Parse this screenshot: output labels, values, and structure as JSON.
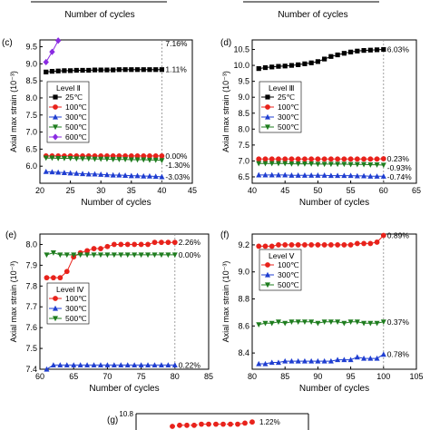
{
  "top_strip": {
    "xlabel_left": "Number of cycles",
    "xlabel_right": "Number of cycles"
  },
  "chart_data": [
    {
      "id": "c",
      "panel_label": "(c)",
      "type": "line",
      "xlabel": "Number of cycles",
      "ylabel": "Axial max strain (10⁻³)",
      "xlim": [
        20,
        45
      ],
      "ylim": [
        5.5,
        9.7
      ],
      "xticks": [
        20,
        25,
        30,
        35,
        40,
        45
      ],
      "yticks": [
        6.0,
        6.5,
        7.0,
        7.5,
        8.0,
        8.5,
        9.0,
        9.5
      ],
      "ytick_labels": [
        "6.0",
        "6.5",
        "7.0",
        "7.5",
        "8.0",
        "8.5",
        "9.0",
        "9.5"
      ],
      "vline_x": 40,
      "legend": {
        "title": "Level Ⅱ",
        "placement": "left"
      },
      "series": [
        {
          "name": "25℃",
          "color": "#000000",
          "marker": "square",
          "x": [
            21,
            22,
            23,
            24,
            25,
            26,
            27,
            28,
            29,
            30,
            31,
            32,
            33,
            34,
            35,
            36,
            37,
            38,
            39,
            40
          ],
          "y": [
            8.76,
            8.78,
            8.79,
            8.8,
            8.8,
            8.81,
            8.81,
            8.81,
            8.82,
            8.82,
            8.82,
            8.82,
            8.83,
            8.83,
            8.83,
            8.83,
            8.83,
            8.83,
            8.83,
            8.83
          ],
          "end_label": "1.11%"
        },
        {
          "name": "100℃",
          "color": "#e8221b",
          "marker": "circle",
          "x": [
            21,
            22,
            23,
            24,
            25,
            26,
            27,
            28,
            29,
            30,
            31,
            32,
            33,
            34,
            35,
            36,
            37,
            38,
            39,
            40
          ],
          "y": [
            6.3,
            6.3,
            6.3,
            6.3,
            6.3,
            6.3,
            6.3,
            6.3,
            6.3,
            6.3,
            6.3,
            6.3,
            6.3,
            6.3,
            6.3,
            6.3,
            6.3,
            6.3,
            6.3,
            6.3
          ],
          "end_label": "0.00%"
        },
        {
          "name": "300℃",
          "color": "#1f3ed1",
          "marker": "triangle-up",
          "x": [
            21,
            22,
            23,
            24,
            25,
            26,
            27,
            28,
            29,
            30,
            31,
            32,
            33,
            34,
            35,
            36,
            37,
            38,
            39,
            40
          ],
          "y": [
            5.84,
            5.83,
            5.82,
            5.81,
            5.8,
            5.79,
            5.78,
            5.77,
            5.77,
            5.76,
            5.75,
            5.74,
            5.74,
            5.73,
            5.72,
            5.72,
            5.71,
            5.71,
            5.7,
            5.69
          ],
          "end_label": "-3.03%"
        },
        {
          "name": "500℃",
          "color": "#1f7d1f",
          "marker": "triangle-down",
          "x": [
            21,
            22,
            23,
            24,
            25,
            26,
            27,
            28,
            29,
            30,
            31,
            32,
            33,
            34,
            35,
            36,
            37,
            38,
            39,
            40
          ],
          "y": [
            6.24,
            6.24,
            6.23,
            6.23,
            6.23,
            6.22,
            6.22,
            6.22,
            6.21,
            6.21,
            6.21,
            6.2,
            6.2,
            6.2,
            6.19,
            6.19,
            6.19,
            6.18,
            6.18,
            6.17
          ],
          "end_label": "-1.30%"
        },
        {
          "name": "600℃",
          "color": "#8a2be2",
          "marker": "diamond",
          "x": [
            21,
            22,
            23
          ],
          "y": [
            9.05,
            9.35,
            9.68
          ],
          "end_label": "7.16%"
        }
      ]
    },
    {
      "id": "d",
      "panel_label": "(d)",
      "type": "line",
      "xlabel": "Number of cycles",
      "ylabel": "Axial max strain (10⁻³)",
      "xlim": [
        40,
        65
      ],
      "ylim": [
        6.3,
        10.8
      ],
      "xticks": [
        40,
        45,
        50,
        55,
        60,
        65
      ],
      "yticks": [
        6.5,
        7.0,
        7.5,
        8.0,
        8.5,
        9.0,
        9.5,
        10.0,
        10.5
      ],
      "ytick_labels": [
        "6.5",
        "7.0",
        "7.5",
        "8.0",
        "8.5",
        "9.0",
        "9.5",
        "10.0",
        "10.5"
      ],
      "vline_x": 60,
      "legend": {
        "title": "Level Ⅲ",
        "placement": "left"
      },
      "series": [
        {
          "name": "25℃",
          "color": "#000000",
          "marker": "square",
          "x": [
            41,
            42,
            43,
            44,
            45,
            46,
            47,
            48,
            49,
            50,
            51,
            52,
            53,
            54,
            55,
            56,
            57,
            58,
            59,
            60
          ],
          "y": [
            9.9,
            9.93,
            9.95,
            9.97,
            9.98,
            10.0,
            10.02,
            10.05,
            10.08,
            10.12,
            10.2,
            10.28,
            10.33,
            10.38,
            10.42,
            10.45,
            10.47,
            10.48,
            10.49,
            10.5
          ],
          "end_label": "6.03%"
        },
        {
          "name": "100℃",
          "color": "#e8221b",
          "marker": "circle",
          "x": [
            41,
            42,
            43,
            44,
            45,
            46,
            47,
            48,
            49,
            50,
            51,
            52,
            53,
            54,
            55,
            56,
            57,
            58,
            59,
            60
          ],
          "y": [
            7.06,
            7.06,
            7.06,
            7.06,
            7.06,
            7.06,
            7.06,
            7.06,
            7.06,
            7.06,
            7.06,
            7.06,
            7.06,
            7.06,
            7.06,
            7.06,
            7.06,
            7.06,
            7.06,
            7.07
          ],
          "end_label": "0.23%"
        },
        {
          "name": "300℃",
          "color": "#1f3ed1",
          "marker": "triangle-up",
          "x": [
            41,
            42,
            43,
            44,
            45,
            46,
            47,
            48,
            49,
            50,
            51,
            52,
            53,
            54,
            55,
            56,
            57,
            58,
            59,
            60
          ],
          "y": [
            6.56,
            6.56,
            6.56,
            6.56,
            6.56,
            6.55,
            6.55,
            6.55,
            6.55,
            6.55,
            6.55,
            6.54,
            6.54,
            6.54,
            6.54,
            6.53,
            6.53,
            6.52,
            6.52,
            6.52
          ],
          "end_label": "-0.74%"
        },
        {
          "name": "500℃",
          "color": "#1f7d1f",
          "marker": "triangle-down",
          "x": [
            41,
            42,
            43,
            44,
            45,
            46,
            47,
            48,
            49,
            50,
            51,
            52,
            53,
            54,
            55,
            56,
            57,
            58,
            59,
            60
          ],
          "y": [
            6.92,
            6.92,
            6.92,
            6.92,
            6.92,
            6.91,
            6.91,
            6.91,
            6.91,
            6.9,
            6.9,
            6.9,
            6.9,
            6.9,
            6.89,
            6.89,
            6.89,
            6.88,
            6.88,
            6.87
          ],
          "end_label": "-0.93%"
        }
      ]
    },
    {
      "id": "e",
      "panel_label": "(e)",
      "type": "line",
      "xlabel": "Number of cycles",
      "ylabel": "Axial max strain (10⁻³)",
      "xlim": [
        60,
        85
      ],
      "ylim": [
        7.4,
        8.05
      ],
      "xticks": [
        60,
        65,
        70,
        75,
        80,
        85
      ],
      "yticks": [
        7.4,
        7.5,
        7.6,
        7.7,
        7.8,
        7.9,
        8.0
      ],
      "ytick_labels": [
        "7.4",
        "7.5",
        "7.6",
        "7.7",
        "7.8",
        "7.9",
        "8.0"
      ],
      "vline_x": 80,
      "legend": {
        "title": "Level Ⅳ",
        "placement": "left"
      },
      "series": [
        {
          "name": "100℃",
          "color": "#e8221b",
          "marker": "circle",
          "x": [
            61,
            62,
            63,
            64,
            65,
            66,
            67,
            68,
            69,
            70,
            71,
            72,
            73,
            74,
            75,
            76,
            77,
            78,
            79,
            80
          ],
          "y": [
            7.84,
            7.84,
            7.84,
            7.87,
            7.94,
            7.96,
            7.97,
            7.98,
            7.98,
            7.99,
            8.0,
            8.0,
            8.0,
            8.0,
            8.0,
            8.0,
            8.01,
            8.01,
            8.01,
            8.01
          ],
          "end_label": "2.26%"
        },
        {
          "name": "300℃",
          "color": "#1f3ed1",
          "marker": "triangle-up",
          "x": [
            61,
            62,
            63,
            64,
            65,
            66,
            67,
            68,
            69,
            70,
            71,
            72,
            73,
            74,
            75,
            76,
            77,
            78,
            79,
            80
          ],
          "y": [
            7.4,
            7.42,
            7.42,
            7.42,
            7.42,
            7.42,
            7.42,
            7.42,
            7.42,
            7.42,
            7.42,
            7.42,
            7.42,
            7.42,
            7.42,
            7.42,
            7.42,
            7.42,
            7.42,
            7.42
          ],
          "end_label": "0.22%"
        },
        {
          "name": "500℃",
          "color": "#1f7d1f",
          "marker": "triangle-down",
          "x": [
            61,
            62,
            63,
            64,
            65,
            66,
            67,
            68,
            69,
            70,
            71,
            72,
            73,
            74,
            75,
            76,
            77,
            78,
            79,
            80
          ],
          "y": [
            7.95,
            7.96,
            7.95,
            7.95,
            7.95,
            7.95,
            7.95,
            7.95,
            7.95,
            7.95,
            7.95,
            7.95,
            7.95,
            7.95,
            7.95,
            7.95,
            7.95,
            7.95,
            7.95,
            7.95
          ],
          "end_label": "0.00%"
        }
      ]
    },
    {
      "id": "f",
      "panel_label": "(f)",
      "type": "line",
      "xlabel": "Number of cycles",
      "ylabel": "Axial max strain (10⁻³)",
      "xlim": [
        80,
        105
      ],
      "ylim": [
        8.28,
        9.28
      ],
      "xticks": [
        80,
        85,
        90,
        95,
        100,
        105
      ],
      "yticks": [
        8.4,
        8.6,
        8.8,
        9.0,
        9.2
      ],
      "ytick_labels": [
        "8.4",
        "8.6",
        "8.8",
        "9.0",
        "9.2"
      ],
      "vline_x": 100,
      "legend": {
        "title": "Level Ⅴ",
        "placement": "left"
      },
      "series": [
        {
          "name": "100℃",
          "color": "#e8221b",
          "marker": "circle",
          "x": [
            81,
            82,
            83,
            84,
            85,
            86,
            87,
            88,
            89,
            90,
            91,
            92,
            93,
            94,
            95,
            96,
            97,
            98,
            99,
            100
          ],
          "y": [
            9.19,
            9.19,
            9.19,
            9.2,
            9.2,
            9.2,
            9.2,
            9.2,
            9.2,
            9.2,
            9.2,
            9.2,
            9.2,
            9.2,
            9.2,
            9.21,
            9.21,
            9.21,
            9.22,
            9.27
          ],
          "end_label": "0.89%"
        },
        {
          "name": "300℃",
          "color": "#1f3ed1",
          "marker": "triangle-up",
          "x": [
            81,
            82,
            83,
            84,
            85,
            86,
            87,
            88,
            89,
            90,
            91,
            92,
            93,
            94,
            95,
            96,
            97,
            98,
            99,
            100
          ],
          "y": [
            8.32,
            8.32,
            8.33,
            8.33,
            8.34,
            8.34,
            8.34,
            8.34,
            8.34,
            8.34,
            8.34,
            8.34,
            8.35,
            8.35,
            8.35,
            8.37,
            8.36,
            8.36,
            8.36,
            8.39
          ],
          "end_label": "0.78%"
        },
        {
          "name": "500℃",
          "color": "#1f7d1f",
          "marker": "triangle-down",
          "x": [
            81,
            82,
            83,
            84,
            85,
            86,
            87,
            88,
            89,
            90,
            91,
            92,
            93,
            94,
            95,
            96,
            97,
            98,
            99,
            100
          ],
          "y": [
            8.61,
            8.62,
            8.62,
            8.63,
            8.62,
            8.63,
            8.63,
            8.63,
            8.63,
            8.62,
            8.63,
            8.63,
            8.63,
            8.62,
            8.63,
            8.63,
            8.62,
            8.62,
            8.62,
            8.63
          ],
          "end_label": "0.37%"
        }
      ]
    },
    {
      "id": "g",
      "panel_label": "(g)",
      "type": "line",
      "ylabel": "",
      "xlim": [
        100,
        125
      ],
      "ylim": [
        10.6,
        10.8
      ],
      "yticks": [
        10.8
      ],
      "ytick_labels": [
        "10.8"
      ],
      "series": [
        {
          "name": "",
          "color": "#e8221b",
          "marker": "circle",
          "x": [
            109,
            110,
            111,
            112,
            113,
            114,
            115,
            116,
            117,
            118,
            119,
            120
          ],
          "y": [
            10.68,
            10.69,
            10.69,
            10.69,
            10.7,
            10.7,
            10.7,
            10.7,
            10.7,
            10.7,
            10.71,
            10.72
          ],
          "end_label": "1.22%"
        }
      ]
    }
  ]
}
